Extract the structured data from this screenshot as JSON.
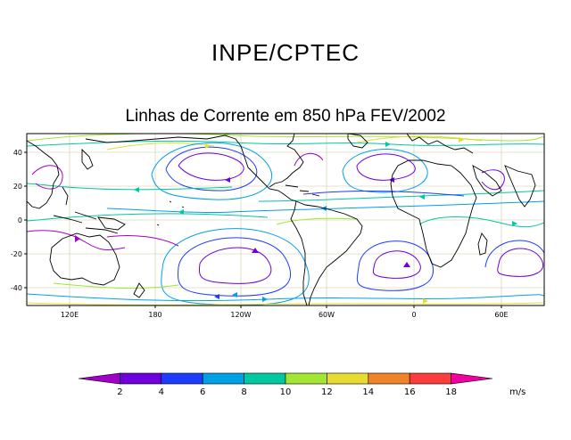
{
  "header": {
    "org": "INPE/CPTEC"
  },
  "title": "Linhas de Corrente em 850 hPa FEV/2002",
  "map": {
    "y_ticks": [
      "40",
      "20",
      "0",
      "-20",
      "-40"
    ],
    "x_ticks": [
      "120E",
      "180",
      "120W",
      "60W",
      "0",
      "60E"
    ]
  },
  "colorbar": {
    "labels": [
      "2",
      "4",
      "6",
      "8",
      "10",
      "12",
      "14",
      "16",
      "18"
    ],
    "unit": "m/s",
    "colors": [
      "#a000c8",
      "#6e00dc",
      "#1e3cff",
      "#00a0e6",
      "#00c8a0",
      "#a0e632",
      "#e6dc32",
      "#f08228",
      "#fa3c3c",
      "#f000a0"
    ]
  }
}
